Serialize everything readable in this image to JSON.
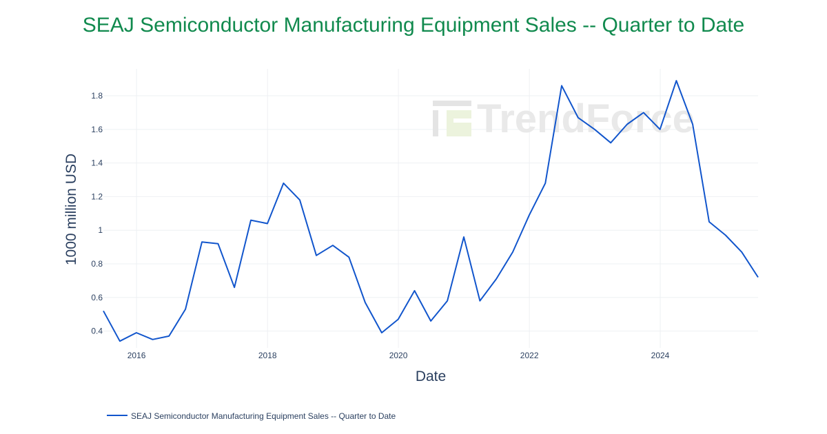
{
  "title": "SEAJ Semiconductor Manufacturing Equipment Sales -- Quarter to Date",
  "watermark": "TrendForce",
  "colors": {
    "title": "#118a4e",
    "line": "#1155cc",
    "grid": "#eef0f3",
    "text": "#2a3f5f",
    "watermark": "#e9e9e9"
  },
  "chart_data": {
    "type": "line",
    "title": "SEAJ Semiconductor Manufacturing Equipment Sales -- Quarter to Date",
    "xlabel": "Date",
    "ylabel": "1000 million USD",
    "x_ticks": [
      "2016",
      "2018",
      "2020",
      "2022",
      "2024"
    ],
    "y_ticks": [
      "0.4",
      "0.6",
      "0.8",
      "1",
      "1.2",
      "1.4",
      "1.6",
      "1.8"
    ],
    "xlim": [
      "2015-06-30",
      "2025-06-30"
    ],
    "ylim": [
      0.3,
      1.96
    ],
    "grid": true,
    "legend_position": "bottom-left",
    "series": [
      {
        "name": "SEAJ Semiconductor Manufacturing Equipment Sales -- Quarter to Date",
        "x": [
          "2015-06-30",
          "2015-09-30",
          "2015-12-31",
          "2016-03-31",
          "2016-06-30",
          "2016-09-30",
          "2016-12-31",
          "2017-03-31",
          "2017-06-30",
          "2017-09-30",
          "2017-12-31",
          "2018-03-31",
          "2018-06-30",
          "2018-09-30",
          "2018-12-31",
          "2019-03-31",
          "2019-06-30",
          "2019-09-30",
          "2019-12-31",
          "2020-03-31",
          "2020-06-30",
          "2020-09-30",
          "2020-12-31",
          "2021-03-31",
          "2021-06-30",
          "2021-09-30",
          "2021-12-31",
          "2022-03-31",
          "2022-06-30",
          "2022-09-30",
          "2022-12-31",
          "2023-03-31",
          "2023-06-30",
          "2023-09-30",
          "2023-12-31",
          "2024-03-31",
          "2024-06-30",
          "2024-09-30",
          "2024-12-31",
          "2025-03-31",
          "2025-06-30"
        ],
        "y": [
          0.52,
          0.34,
          0.39,
          0.35,
          0.37,
          0.53,
          0.93,
          0.92,
          0.66,
          1.06,
          1.04,
          1.28,
          1.18,
          0.85,
          0.91,
          0.84,
          0.57,
          0.39,
          0.47,
          0.64,
          0.46,
          0.58,
          0.96,
          0.58,
          0.71,
          0.87,
          1.09,
          1.28,
          1.86,
          1.67,
          1.6,
          1.52,
          1.63,
          1.7,
          1.6,
          1.89,
          1.63,
          1.05,
          0.97,
          0.87,
          0.72
        ]
      }
    ]
  }
}
